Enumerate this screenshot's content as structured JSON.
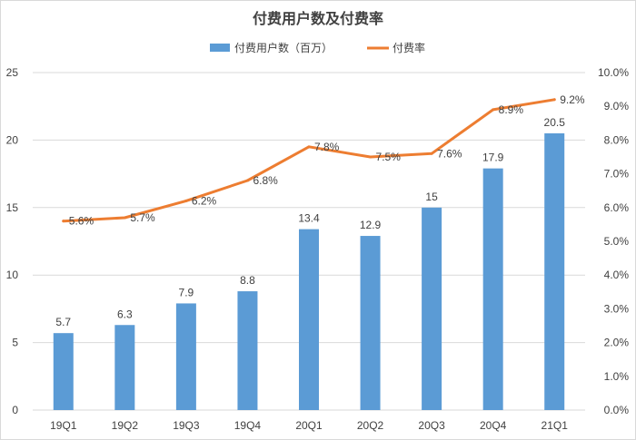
{
  "chart_data": {
    "type": "bar",
    "title": "付费用户数及付费率",
    "categories": [
      "19Q1",
      "19Q2",
      "19Q3",
      "19Q4",
      "20Q1",
      "20Q2",
      "20Q3",
      "20Q4",
      "21Q1"
    ],
    "series": [
      {
        "name": "付费用户数（百万）",
        "type": "bar",
        "axis": "left",
        "color": "#5b9bd5",
        "values": [
          5.7,
          6.3,
          7.9,
          8.8,
          13.4,
          12.9,
          15,
          17.9,
          20.5
        ],
        "labels": [
          "5.7",
          "6.3",
          "7.9",
          "8.8",
          "13.4",
          "12.9",
          "15",
          "17.9",
          "20.5"
        ]
      },
      {
        "name": "付费率",
        "type": "line",
        "axis": "right",
        "color": "#ed7d31",
        "values": [
          5.6,
          5.7,
          6.2,
          6.8,
          7.8,
          7.5,
          7.6,
          8.9,
          9.2
        ],
        "labels": [
          "5.6%",
          "5.7%",
          "6.2%",
          "6.8%",
          "7.8%",
          "7.5%",
          "7.6%",
          "8.9%",
          "9.2%"
        ]
      }
    ],
    "y_left": {
      "min": 0,
      "max": 25,
      "ticks": [
        "0",
        "5",
        "10",
        "15",
        "20",
        "25"
      ]
    },
    "y_right": {
      "min": 0,
      "max": 10,
      "ticks": [
        "0.0%",
        "1.0%",
        "2.0%",
        "3.0%",
        "4.0%",
        "5.0%",
        "6.0%",
        "7.0%",
        "8.0%",
        "9.0%",
        "10.0%"
      ]
    },
    "grid": true,
    "legend_position": "top-center"
  }
}
